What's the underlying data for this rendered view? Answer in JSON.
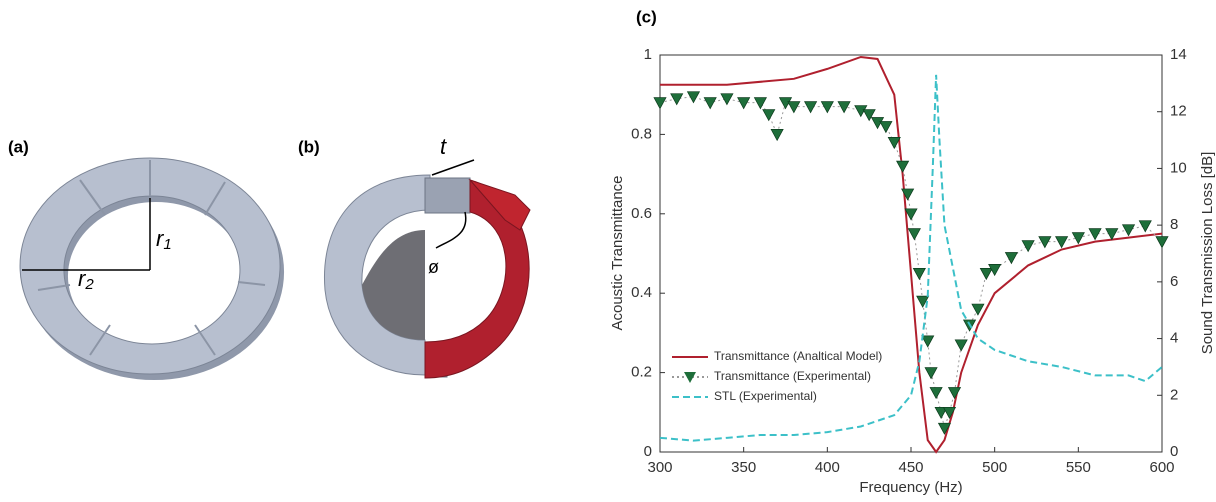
{
  "panels": {
    "a": {
      "label": "(a)",
      "r1": {
        "symbol": "r",
        "subscript": "1"
      },
      "r2": {
        "symbol": "r",
        "subscript": "2"
      }
    },
    "b": {
      "label": "(b)",
      "t": "t",
      "phi": "ø"
    },
    "c": {
      "label": "(c)"
    }
  },
  "chart_data": {
    "type": "line",
    "xlabel": "Frequency (Hz)",
    "ylabel": "Acoustic Transmittance",
    "y2label": "Sound Transmission Loss [dB]",
    "xlim": [
      300,
      600
    ],
    "xticks": [
      300,
      350,
      400,
      450,
      500,
      550,
      600
    ],
    "ylim": [
      0,
      1
    ],
    "yticks": [
      0,
      0.2,
      0.4,
      0.6,
      0.8,
      1
    ],
    "y2lim": [
      0,
      14
    ],
    "y2ticks": [
      0,
      2,
      4,
      6,
      8,
      10,
      12,
      14
    ],
    "legend": "lower left",
    "series": [
      {
        "name": "Transmittance (Analtical Model)",
        "color": "#b0202e",
        "line_style": "solid",
        "x": [
          300,
          340,
          380,
          400,
          420,
          430,
          440,
          445,
          450,
          455,
          460,
          465,
          470,
          475,
          480,
          490,
          500,
          520,
          540,
          560,
          580,
          600
        ],
        "values": [
          0.925,
          0.925,
          0.94,
          0.965,
          0.995,
          0.99,
          0.9,
          0.7,
          0.45,
          0.2,
          0.03,
          0.0,
          0.03,
          0.1,
          0.2,
          0.32,
          0.4,
          0.47,
          0.51,
          0.53,
          0.54,
          0.55
        ]
      },
      {
        "name": "Transmittance (Experimental)",
        "color": "#1e6e3a",
        "line_style": "dotted",
        "marker": "triangle-down",
        "x": [
          300,
          310,
          320,
          330,
          340,
          350,
          360,
          365,
          370,
          375,
          380,
          390,
          400,
          410,
          420,
          425,
          430,
          435,
          440,
          445,
          448,
          450,
          452,
          455,
          457,
          460,
          462,
          465,
          468,
          470,
          473,
          476,
          480,
          485,
          490,
          495,
          500,
          510,
          520,
          530,
          540,
          550,
          560,
          570,
          580,
          590,
          600
        ],
        "values": [
          0.88,
          0.89,
          0.895,
          0.88,
          0.89,
          0.88,
          0.88,
          0.85,
          0.8,
          0.88,
          0.87,
          0.87,
          0.87,
          0.87,
          0.86,
          0.85,
          0.83,
          0.82,
          0.78,
          0.72,
          0.65,
          0.6,
          0.55,
          0.45,
          0.38,
          0.28,
          0.2,
          0.15,
          0.1,
          0.06,
          0.1,
          0.15,
          0.27,
          0.32,
          0.36,
          0.45,
          0.46,
          0.49,
          0.52,
          0.53,
          0.53,
          0.54,
          0.55,
          0.55,
          0.56,
          0.57,
          0.53
        ]
      },
      {
        "name": "STL (Experimental)",
        "color": "#3cc0c8",
        "line_style": "dashed",
        "axis": "y2",
        "x": [
          300,
          320,
          340,
          360,
          380,
          400,
          420,
          440,
          450,
          455,
          460,
          463,
          465,
          467,
          470,
          475,
          480,
          490,
          500,
          520,
          540,
          560,
          580,
          590,
          600
        ],
        "values": [
          0.5,
          0.4,
          0.5,
          0.6,
          0.6,
          0.7,
          0.9,
          1.3,
          2.0,
          3.2,
          5.5,
          10,
          13.3,
          11,
          8,
          6.5,
          5,
          4,
          3.6,
          3.2,
          3.0,
          2.7,
          2.7,
          2.5,
          3.0
        ]
      }
    ]
  }
}
